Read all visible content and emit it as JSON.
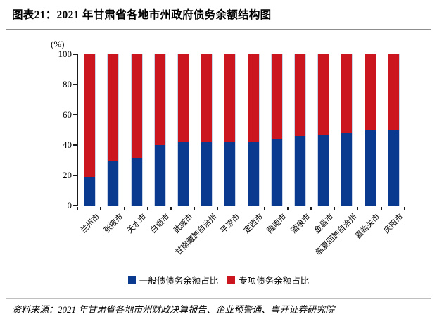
{
  "header": {
    "title": "图表21：2021 年甘肃省各地市州政府债务余额结构图"
  },
  "chart_data": {
    "type": "bar",
    "stacked": true,
    "title": "2021 年甘肃省各地市州政府债务余额结构图",
    "ylabel": "(%)",
    "xlabel": "",
    "ylim": [
      0,
      100
    ],
    "yticks": [
      0,
      20,
      40,
      60,
      80,
      100
    ],
    "grid": false,
    "legend_position": "bottom",
    "categories": [
      "兰州市",
      "张掖市",
      "天水市",
      "白银市",
      "武威市",
      "甘南藏族自治州",
      "平凉市",
      "定西市",
      "陇南市",
      "酒泉市",
      "金昌市",
      "临夏回族自治州",
      "嘉峪关市",
      "庆阳市"
    ],
    "series": [
      {
        "name": "一般债债务余额占比",
        "color": "#0a3a8f",
        "values": [
          19,
          30,
          31,
          40,
          42,
          42,
          42,
          42,
          44,
          46,
          47,
          48,
          50,
          50
        ]
      },
      {
        "name": "专项债务余额占比",
        "color": "#cc161f",
        "values": [
          81,
          70,
          69,
          60,
          58,
          58,
          58,
          58,
          56,
          54,
          53,
          52,
          50,
          50
        ]
      }
    ]
  },
  "footer": {
    "source": "资料来源：2021 年甘肃省各地市州财政决算报告、企业预警通、粤开证券研究院"
  }
}
